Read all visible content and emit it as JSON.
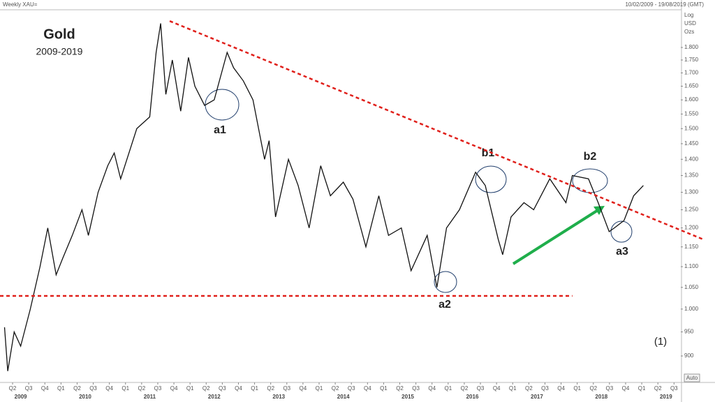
{
  "header": {
    "instrument": "Weekly XAU=",
    "range": "10/02/2009 - 19/08/2019 (GMT)",
    "auto_button": "Auto"
  },
  "chart_data": {
    "type": "line",
    "title": "Gold",
    "subtitle": "2009-2019",
    "scale_labels": [
      "Log",
      "USD",
      "Ozs"
    ],
    "log_scale": true,
    "color": "#111111",
    "series": [
      {
        "name": "XAU",
        "color": "#111111",
        "x": [
          2009.25,
          2009.3,
          2009.4,
          2009.5,
          2009.65,
          2009.8,
          2009.92,
          2010.05,
          2010.15,
          2010.3,
          2010.45,
          2010.55,
          2010.7,
          2010.85,
          2010.95,
          2011.05,
          2011.3,
          2011.5,
          2011.6,
          2011.67,
          2011.75,
          2011.85,
          2011.98,
          2012.1,
          2012.2,
          2012.35,
          2012.5,
          2012.7,
          2012.8,
          2012.95,
          2013.1,
          2013.28,
          2013.35,
          2013.45,
          2013.65,
          2013.8,
          2013.97,
          2014.15,
          2014.3,
          2014.5,
          2014.65,
          2014.85,
          2015.05,
          2015.2,
          2015.4,
          2015.55,
          2015.8,
          2015.95,
          2016.1,
          2016.3,
          2016.55,
          2016.7,
          2016.9,
          2016.97,
          2017.1,
          2017.3,
          2017.45,
          2017.7,
          2017.95,
          2018.05,
          2018.3,
          2018.45,
          2018.62,
          2018.7,
          2018.85,
          2019.0,
          2019.15
        ],
        "values": [
          960,
          870,
          950,
          920,
          1000,
          1100,
          1200,
          1080,
          1120,
          1180,
          1250,
          1180,
          1300,
          1380,
          1420,
          1340,
          1500,
          1540,
          1780,
          1900,
          1620,
          1750,
          1560,
          1760,
          1650,
          1580,
          1600,
          1780,
          1720,
          1670,
          1600,
          1400,
          1460,
          1230,
          1400,
          1320,
          1200,
          1380,
          1290,
          1330,
          1280,
          1150,
          1290,
          1180,
          1200,
          1090,
          1180,
          1050,
          1200,
          1250,
          1360,
          1320,
          1170,
          1130,
          1230,
          1270,
          1250,
          1340,
          1270,
          1350,
          1340,
          1270,
          1190,
          1200,
          1220,
          1290,
          1320
        ]
      }
    ],
    "trend_lines": [
      {
        "color": "#e0201b",
        "x": [
          2009.18,
          2018.05
        ],
        "values": [
          1030,
          1030
        ]
      },
      {
        "color": "#e0201b",
        "x": [
          2011.81,
          2020.1
        ],
        "values": [
          1910,
          1168
        ]
      }
    ],
    "annotations": [
      "a1",
      "a2",
      "a3",
      "b1",
      "b2",
      "(1)"
    ],
    "xlim": [
      2009.18,
      2019.73
    ],
    "ylim": [
      848,
      1956
    ],
    "yticks": [
      {
        "value": 900,
        "label": "900"
      },
      {
        "value": 950,
        "label": "950"
      },
      {
        "value": 1000,
        "label": "1.000"
      },
      {
        "value": 1050,
        "label": "1.050"
      },
      {
        "value": 1100,
        "label": "1.100"
      },
      {
        "value": 1150,
        "label": "1.150"
      },
      {
        "value": 1200,
        "label": "1.200"
      },
      {
        "value": 1250,
        "label": "1.250"
      },
      {
        "value": 1300,
        "label": "1.300"
      },
      {
        "value": 1350,
        "label": "1.350"
      },
      {
        "value": 1400,
        "label": "1.400"
      },
      {
        "value": 1450,
        "label": "1.450"
      },
      {
        "value": 1500,
        "label": "1.500"
      },
      {
        "value": 1550,
        "label": "1.550"
      },
      {
        "value": 1600,
        "label": "1.600"
      },
      {
        "value": 1650,
        "label": "1.650"
      },
      {
        "value": 1700,
        "label": "1.700"
      },
      {
        "value": 1750,
        "label": "1.750"
      },
      {
        "value": 1800,
        "label": "1.800"
      }
    ],
    "xticks": [
      {
        "value": 2009.375,
        "label": "Q2"
      },
      {
        "value": 2009.625,
        "label": "Q3"
      },
      {
        "value": 2009.875,
        "label": "Q4"
      },
      {
        "value": 2010.125,
        "label": "Q1"
      },
      {
        "value": 2010.375,
        "label": "Q2"
      },
      {
        "value": 2010.625,
        "label": "Q3"
      },
      {
        "value": 2010.875,
        "label": "Q4"
      },
      {
        "value": 2011.125,
        "label": "Q1"
      },
      {
        "value": 2011.375,
        "label": "Q2"
      },
      {
        "value": 2011.625,
        "label": "Q3"
      },
      {
        "value": 2011.875,
        "label": "Q4"
      },
      {
        "value": 2012.125,
        "label": "Q1"
      },
      {
        "value": 2012.375,
        "label": "Q2"
      },
      {
        "value": 2012.625,
        "label": "Q3"
      },
      {
        "value": 2012.875,
        "label": "Q4"
      },
      {
        "value": 2013.125,
        "label": "Q1"
      },
      {
        "value": 2013.375,
        "label": "Q2"
      },
      {
        "value": 2013.625,
        "label": "Q3"
      },
      {
        "value": 2013.875,
        "label": "Q4"
      },
      {
        "value": 2014.125,
        "label": "Q1"
      },
      {
        "value": 2014.375,
        "label": "Q2"
      },
      {
        "value": 2014.625,
        "label": "Q3"
      },
      {
        "value": 2014.875,
        "label": "Q4"
      },
      {
        "value": 2015.125,
        "label": "Q1"
      },
      {
        "value": 2015.375,
        "label": "Q2"
      },
      {
        "value": 2015.625,
        "label": "Q3"
      },
      {
        "value": 2015.875,
        "label": "Q4"
      },
      {
        "value": 2016.125,
        "label": "Q1"
      },
      {
        "value": 2016.375,
        "label": "Q2"
      },
      {
        "value": 2016.625,
        "label": "Q3"
      },
      {
        "value": 2016.875,
        "label": "Q4"
      },
      {
        "value": 2017.125,
        "label": "Q1"
      },
      {
        "value": 2017.375,
        "label": "Q2"
      },
      {
        "value": 2017.625,
        "label": "Q3"
      },
      {
        "value": 2017.875,
        "label": "Q4"
      },
      {
        "value": 2018.125,
        "label": "Q1"
      },
      {
        "value": 2018.375,
        "label": "Q2"
      },
      {
        "value": 2018.625,
        "label": "Q3"
      },
      {
        "value": 2018.875,
        "label": "Q4"
      },
      {
        "value": 2019.125,
        "label": "Q1"
      },
      {
        "value": 2019.375,
        "label": "Q2"
      },
      {
        "value": 2019.625,
        "label": "Q3"
      }
    ],
    "year_ticks": [
      {
        "value": 2009.5,
        "label": "2009"
      },
      {
        "value": 2010.5,
        "label": "2010"
      },
      {
        "value": 2011.5,
        "label": "2011"
      },
      {
        "value": 2012.5,
        "label": "2012"
      },
      {
        "value": 2013.5,
        "label": "2013"
      },
      {
        "value": 2014.5,
        "label": "2014"
      },
      {
        "value": 2015.5,
        "label": "2015"
      },
      {
        "value": 2016.5,
        "label": "2016"
      },
      {
        "value": 2017.5,
        "label": "2017"
      },
      {
        "value": 2018.5,
        "label": "2018"
      },
      {
        "value": 2019.5,
        "label": "2019"
      }
    ]
  }
}
